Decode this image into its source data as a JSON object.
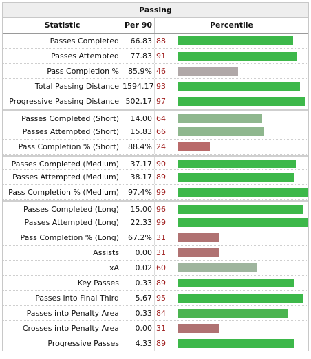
{
  "title": "Passing",
  "headers": {
    "statistic": "Statistic",
    "per90": "Per 90",
    "percentile": "Percentile"
  },
  "bar_colors": {
    "high": "#3db84a",
    "mid_high": "#8fb78e",
    "neutral": "#b0a8a8",
    "low": "#b07272",
    "low_strong": "#b96a6a"
  },
  "groups": [
    {
      "rows": [
        {
          "stat": "Passes Completed",
          "per90": "66.83",
          "pct": 88,
          "color": "#3db84a"
        },
        {
          "stat": "Passes Attempted",
          "per90": "77.83",
          "pct": 91,
          "color": "#3db84a"
        },
        {
          "stat": "Pass Completion %",
          "per90": "85.9%",
          "pct": 46,
          "color": "#b0a8a8"
        },
        {
          "stat": "Total Passing Distance",
          "per90": "1594.17",
          "pct": 93,
          "color": "#3db84a"
        },
        {
          "stat": "Progressive Passing Distance",
          "per90": "502.17",
          "pct": 97,
          "color": "#3db84a"
        }
      ]
    },
    {
      "rows": [
        {
          "stat": "Passes Completed (Short)",
          "per90": "14.00",
          "pct": 64,
          "color": "#8fb78e"
        },
        {
          "stat": "Passes Attempted (Short)",
          "per90": "15.83",
          "pct": 66,
          "color": "#8fb78e"
        },
        {
          "stat": "Pass Completion % (Short)",
          "per90": "88.4%",
          "pct": 24,
          "color": "#b96a6a"
        }
      ]
    },
    {
      "rows": [
        {
          "stat": "Passes Completed (Medium)",
          "per90": "37.17",
          "pct": 90,
          "color": "#3db84a"
        },
        {
          "stat": "Passes Attempted (Medium)",
          "per90": "38.17",
          "pct": 89,
          "color": "#3db84a"
        },
        {
          "stat": "Pass Completion % (Medium)",
          "per90": "97.4%",
          "pct": 99,
          "color": "#3db84a"
        }
      ]
    },
    {
      "rows": [
        {
          "stat": "Passes Completed (Long)",
          "per90": "15.00",
          "pct": 96,
          "color": "#3db84a"
        },
        {
          "stat": "Passes Attempted (Long)",
          "per90": "22.33",
          "pct": 99,
          "color": "#3db84a"
        },
        {
          "stat": "Pass Completion % (Long)",
          "per90": "67.2%",
          "pct": 31,
          "color": "#b07272"
        },
        {
          "stat": "Assists",
          "per90": "0.00",
          "pct": 31,
          "color": "#b07272"
        },
        {
          "stat": "xA",
          "per90": "0.02",
          "pct": 60,
          "color": "#9fb59e"
        },
        {
          "stat": "Key Passes",
          "per90": "0.33",
          "pct": 89,
          "color": "#3db84a"
        },
        {
          "stat": "Passes into Final Third",
          "per90": "5.67",
          "pct": 95,
          "color": "#3db84a"
        },
        {
          "stat": "Passes into Penalty Area",
          "per90": "0.33",
          "pct": 84,
          "color": "#4bb450"
        },
        {
          "stat": "Crosses into Penalty Area",
          "per90": "0.00",
          "pct": 31,
          "color": "#b07272"
        },
        {
          "stat": "Progressive Passes",
          "per90": "4.33",
          "pct": 89,
          "color": "#3db84a"
        }
      ]
    }
  ]
}
